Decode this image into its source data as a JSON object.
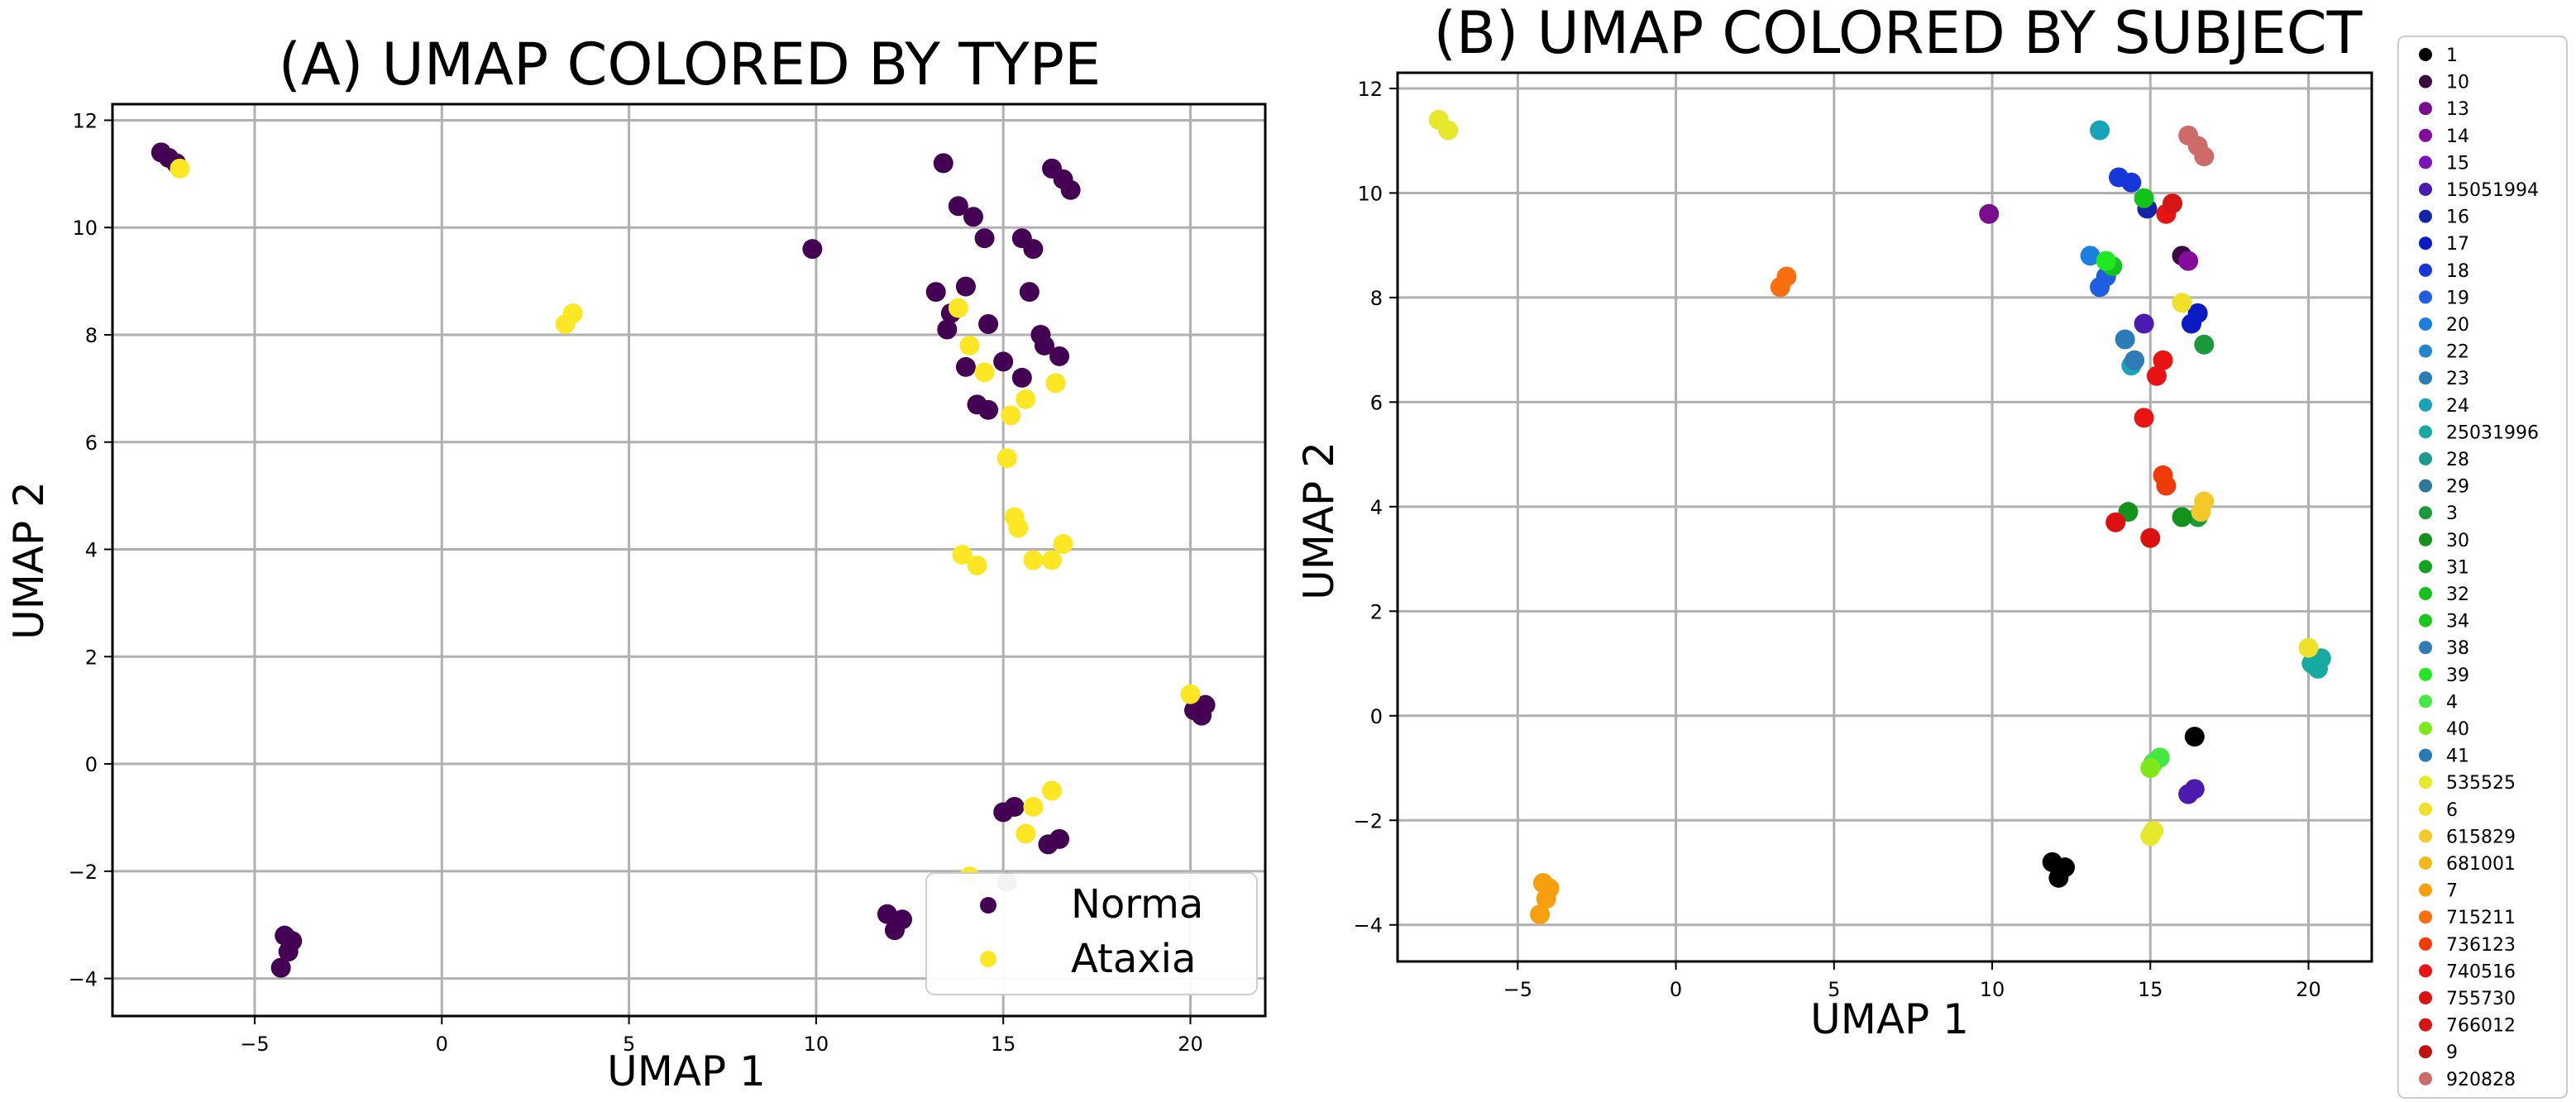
{
  "chart_data": [
    {
      "type": "scatter",
      "title": "(A) UMAP COLORED BY TYPE",
      "xlabel": "UMAP 1",
      "ylabel": "UMAP 2",
      "xlim": [
        -8.8,
        22.0
      ],
      "ylim": [
        -4.7,
        12.3
      ],
      "xticks": [
        -5,
        0,
        5,
        10,
        15,
        20
      ],
      "yticks": [
        -4,
        -2,
        0,
        2,
        4,
        6,
        8,
        10,
        12
      ],
      "grid": true,
      "legend_position": "bottom-right",
      "series": [
        {
          "name": "Norma",
          "color": "#440154",
          "points": [
            [
              -7.5,
              11.4
            ],
            [
              -7.3,
              11.3
            ],
            [
              -7.1,
              11.2
            ],
            [
              9.9,
              9.6
            ],
            [
              13.4,
              11.2
            ],
            [
              13.8,
              10.4
            ],
            [
              14.2,
              10.2
            ],
            [
              14.5,
              9.8
            ],
            [
              13.2,
              8.8
            ],
            [
              13.6,
              8.4
            ],
            [
              14.0,
              8.9
            ],
            [
              14.6,
              8.2
            ],
            [
              15.5,
              9.8
            ],
            [
              15.8,
              9.6
            ],
            [
              16.3,
              11.1
            ],
            [
              16.6,
              10.9
            ],
            [
              16.8,
              10.7
            ],
            [
              13.5,
              8.1
            ],
            [
              15.0,
              7.5
            ],
            [
              15.5,
              7.2
            ],
            [
              16.1,
              7.8
            ],
            [
              16.5,
              7.6
            ],
            [
              14.0,
              7.4
            ],
            [
              14.3,
              6.7
            ],
            [
              14.6,
              6.6
            ],
            [
              15.7,
              8.8
            ],
            [
              16.0,
              8.0
            ],
            [
              15.0,
              -0.9
            ],
            [
              15.3,
              -0.8
            ],
            [
              16.2,
              -1.5
            ],
            [
              16.5,
              -1.4
            ],
            [
              11.9,
              -2.8
            ],
            [
              12.1,
              -3.1
            ],
            [
              12.3,
              -2.9
            ],
            [
              15.1,
              -2.2
            ],
            [
              20.1,
              1.0
            ],
            [
              20.4,
              1.1
            ],
            [
              20.3,
              0.9
            ],
            [
              -4.2,
              -3.2
            ],
            [
              -4.1,
              -3.5
            ],
            [
              -4.3,
              -3.8
            ],
            [
              -4.0,
              -3.3
            ]
          ]
        },
        {
          "name": "Ataxia",
          "color": "#fde725",
          "points": [
            [
              -7.0,
              11.1
            ],
            [
              3.3,
              8.2
            ],
            [
              3.5,
              8.4
            ],
            [
              13.8,
              8.5
            ],
            [
              14.1,
              7.8
            ],
            [
              14.5,
              7.3
            ],
            [
              15.2,
              6.5
            ],
            [
              15.6,
              6.8
            ],
            [
              15.1,
              5.7
            ],
            [
              15.3,
              4.6
            ],
            [
              15.4,
              4.4
            ],
            [
              13.9,
              3.9
            ],
            [
              14.3,
              3.7
            ],
            [
              15.8,
              3.8
            ],
            [
              16.3,
              3.8
            ],
            [
              16.6,
              4.1
            ],
            [
              16.4,
              7.1
            ],
            [
              15.8,
              -0.8
            ],
            [
              16.3,
              -0.5
            ],
            [
              15.6,
              -1.3
            ],
            [
              14.1,
              -2.1
            ],
            [
              20.0,
              1.3
            ]
          ]
        }
      ]
    },
    {
      "type": "scatter",
      "title": "(B) UMAP COLORED BY SUBJECT",
      "xlabel": "UMAP 1",
      "ylabel": "UMAP 2",
      "xlim": [
        -8.8,
        22.0
      ],
      "ylim": [
        -4.7,
        12.3
      ],
      "xticks": [
        -5,
        0,
        5,
        10,
        15,
        20
      ],
      "yticks": [
        -4,
        -2,
        0,
        2,
        4,
        6,
        8,
        10,
        12
      ],
      "grid": true,
      "legend_position": "outside-right",
      "series": [
        {
          "name": "1",
          "color": "#000000",
          "points": [
            [
              11.9,
              -2.8
            ],
            [
              12.1,
              -3.1
            ],
            [
              12.3,
              -2.9
            ],
            [
              16.4,
              -0.4
            ]
          ]
        },
        {
          "name": "10",
          "color": "#3a0b3f",
          "points": [
            [
              16.0,
              8.8
            ]
          ]
        },
        {
          "name": "13",
          "color": "#7a0e8c",
          "points": [
            [
              9.9,
              9.6
            ]
          ]
        },
        {
          "name": "14",
          "color": "#850a9e",
          "points": [
            [
              16.2,
              8.7
            ]
          ]
        },
        {
          "name": "15",
          "color": "#7a14b8",
          "points": []
        },
        {
          "name": "15051994",
          "color": "#4b1bb0",
          "points": [
            [
              16.2,
              -1.5
            ],
            [
              16.4,
              -1.4
            ],
            [
              14.8,
              7.5
            ]
          ]
        },
        {
          "name": "16",
          "color": "#1424a8",
          "points": [
            [
              14.9,
              9.7
            ]
          ]
        },
        {
          "name": "17",
          "color": "#0b1bc4",
          "points": [
            [
              16.3,
              7.5
            ],
            [
              16.5,
              7.7
            ]
          ]
        },
        {
          "name": "18",
          "color": "#1638d8",
          "points": [
            [
              14.0,
              10.3
            ],
            [
              14.4,
              10.2
            ]
          ]
        },
        {
          "name": "19",
          "color": "#1f5ee0",
          "points": [
            [
              13.4,
              8.2
            ],
            [
              13.6,
              8.4
            ]
          ]
        },
        {
          "name": "20",
          "color": "#1b7fe0",
          "points": [
            [
              13.1,
              8.8
            ]
          ]
        },
        {
          "name": "22",
          "color": "#2288cc",
          "points": []
        },
        {
          "name": "23",
          "color": "#2a7db5",
          "points": [
            [
              14.2,
              7.2
            ]
          ]
        },
        {
          "name": "24",
          "color": "#17a3b8",
          "points": [
            [
              13.4,
              11.2
            ],
            [
              14.4,
              6.7
            ]
          ]
        },
        {
          "name": "25031996",
          "color": "#16aaa3",
          "points": [
            [
              20.1,
              1.0
            ],
            [
              20.4,
              1.1
            ],
            [
              20.3,
              0.9
            ]
          ]
        },
        {
          "name": "28",
          "color": "#1e9a8c",
          "points": []
        },
        {
          "name": "29",
          "color": "#2b7a9e",
          "points": []
        },
        {
          "name": "3",
          "color": "#1a9a3a",
          "points": [
            [
              16.7,
              7.1
            ],
            [
              16.5,
              3.8
            ]
          ]
        },
        {
          "name": "30",
          "color": "#13921c",
          "points": [
            [
              14.3,
              3.9
            ],
            [
              16.0,
              3.8
            ]
          ]
        },
        {
          "name": "31",
          "color": "#11a520",
          "points": []
        },
        {
          "name": "32",
          "color": "#14c21c",
          "points": [
            [
              13.8,
              8.6
            ],
            [
              14.8,
              9.9
            ]
          ]
        },
        {
          "name": "34",
          "color": "#19c819",
          "points": []
        },
        {
          "name": "38",
          "color": "#2e7bb8",
          "points": [
            [
              14.5,
              6.8
            ]
          ]
        },
        {
          "name": "39",
          "color": "#22e822",
          "points": [
            [
              13.6,
              8.7
            ]
          ]
        },
        {
          "name": "4",
          "color": "#43e843",
          "points": [
            [
              15.1,
              -0.9
            ],
            [
              15.3,
              -0.8
            ]
          ]
        },
        {
          "name": "40",
          "color": "#7ee81a",
          "points": [
            [
              15.0,
              -1.0
            ]
          ]
        },
        {
          "name": "41",
          "color": "#2a7bb5",
          "points": []
        },
        {
          "name": "535525",
          "color": "#e5e82b",
          "points": [
            [
              -7.5,
              11.4
            ],
            [
              -7.2,
              11.2
            ],
            [
              15.1,
              -2.2
            ],
            [
              15.0,
              -2.3
            ]
          ]
        },
        {
          "name": "6",
          "color": "#f0e02a",
          "points": [
            [
              16.0,
              7.9
            ],
            [
              20.0,
              1.3
            ]
          ]
        },
        {
          "name": "615829",
          "color": "#f5c82a",
          "points": [
            [
              16.6,
              3.9
            ],
            [
              16.7,
              4.1
            ]
          ]
        },
        {
          "name": "681001",
          "color": "#f5b81c",
          "points": []
        },
        {
          "name": "7",
          "color": "#f7a00f",
          "points": [
            [
              -4.2,
              -3.2
            ],
            [
              -4.1,
              -3.5
            ],
            [
              -4.3,
              -3.8
            ],
            [
              -4.0,
              -3.3
            ]
          ]
        },
        {
          "name": "715211",
          "color": "#fa6e0d",
          "points": [
            [
              3.3,
              8.2
            ],
            [
              3.5,
              8.4
            ]
          ]
        },
        {
          "name": "736123",
          "color": "#f03a0a",
          "points": [
            [
              15.4,
              4.6
            ],
            [
              15.5,
              4.4
            ]
          ]
        },
        {
          "name": "740516",
          "color": "#e81414",
          "points": [
            [
              15.5,
              9.6
            ],
            [
              15.2,
              6.5
            ],
            [
              15.4,
              6.8
            ],
            [
              14.8,
              5.7
            ]
          ]
        },
        {
          "name": "755730",
          "color": "#dd1010",
          "points": [
            [
              13.9,
              3.7
            ],
            [
              15.0,
              3.4
            ]
          ]
        },
        {
          "name": "766012",
          "color": "#d41616",
          "points": [
            [
              15.7,
              9.8
            ]
          ]
        },
        {
          "name": "9",
          "color": "#c01010",
          "points": []
        },
        {
          "name": "920828",
          "color": "#cd6a6a",
          "points": [
            [
              16.2,
              11.1
            ],
            [
              16.5,
              10.9
            ],
            [
              16.7,
              10.7
            ]
          ]
        }
      ]
    }
  ]
}
